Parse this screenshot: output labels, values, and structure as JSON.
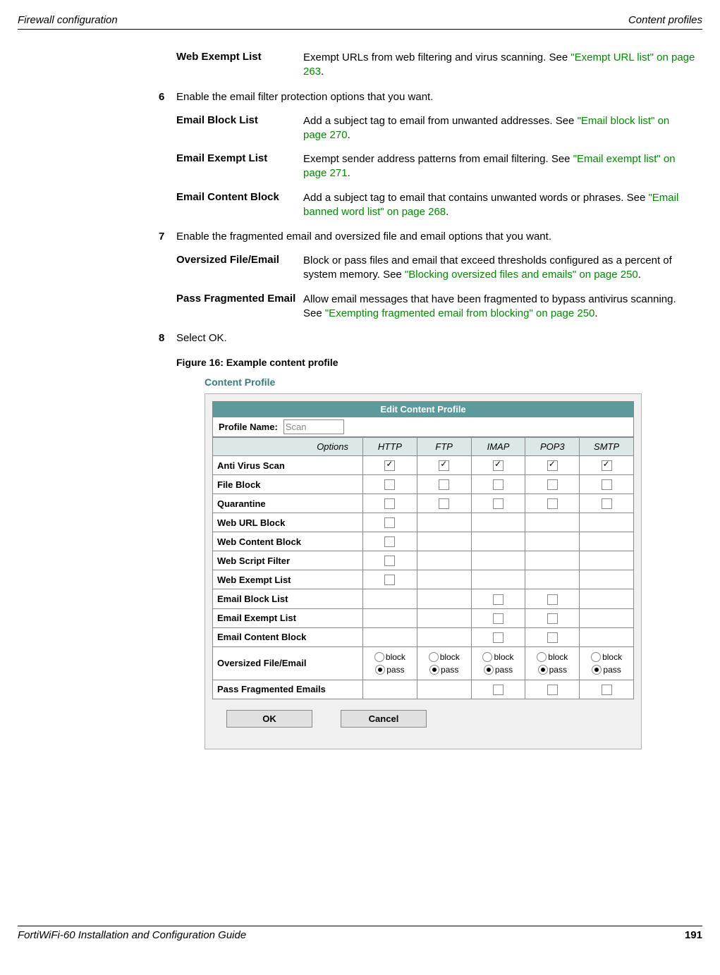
{
  "header": {
    "left": "Firewall configuration",
    "right": "Content profiles"
  },
  "defs": {
    "webExempt": {
      "term": "Web Exempt List",
      "desc_pre": "Exempt URLs from web filtering and virus scanning. See ",
      "link": "\"Exempt URL list\" on page 263",
      "desc_post": "."
    },
    "emailBlock": {
      "term": "Email Block List",
      "desc_pre": "Add a subject tag to email from unwanted addresses. See ",
      "link": "\"Email block list\" on page 270",
      "desc_post": "."
    },
    "emailExempt": {
      "term": "Email Exempt List",
      "desc_pre": "Exempt sender address patterns from email filtering. See ",
      "link": "\"Email exempt list\" on page 271",
      "desc_post": "."
    },
    "emailContent": {
      "term": "Email Content Block",
      "desc_pre": "Add a subject tag to email that contains unwanted words or phrases. See ",
      "link": "\"Email banned word list\" on page 268",
      "desc_post": "."
    },
    "oversized": {
      "term": "Oversized File/Email",
      "desc_pre": "Block or pass files and email that exceed thresholds configured as a percent of system memory. See ",
      "link": "\"Blocking oversized files and emails\" on page 250",
      "desc_post": "."
    },
    "fragmented": {
      "term": "Pass Fragmented Email",
      "desc_pre": "Allow email messages that have been fragmented to bypass antivirus scanning. See ",
      "link": "\"Exempting fragmented email from blocking\" on page 250",
      "desc_post": "."
    }
  },
  "steps": {
    "s6": {
      "num": "6",
      "text": "Enable the email filter protection options that you want."
    },
    "s7": {
      "num": "7",
      "text": "Enable the fragmented email and oversized file and email options that you want."
    },
    "s8": {
      "num": "8",
      "text": "Select OK."
    }
  },
  "figure": {
    "label": "Figure 16: Example content profile"
  },
  "profile": {
    "heading": "Content Profile",
    "editTitle": "Edit Content Profile",
    "nameLabel": "Profile Name:",
    "nameValue": "Scan",
    "columns": {
      "options": "Options",
      "http": "HTTP",
      "ftp": "FTP",
      "imap": "IMAP",
      "pop3": "POP3",
      "smtp": "SMTP"
    },
    "rows": {
      "antivirus": "Anti Virus Scan",
      "fileblock": "File Block",
      "quarantine": "Quarantine",
      "weburl": "Web URL Block",
      "webcontent": "Web Content Block",
      "webscript": "Web Script Filter",
      "webexempt": "Web Exempt List",
      "emailblock": "Email Block List",
      "emailexempt": "Email Exempt List",
      "emailcontent": "Email Content Block",
      "oversized": "Oversized File/Email",
      "fragmented": "Pass Fragmented Emails"
    },
    "radioLabels": {
      "block": "block",
      "pass": "pass"
    },
    "buttons": {
      "ok": "OK",
      "cancel": "Cancel"
    }
  },
  "footer": {
    "left": "FortiWiFi-60 Installation and Configuration Guide",
    "page": "191"
  }
}
